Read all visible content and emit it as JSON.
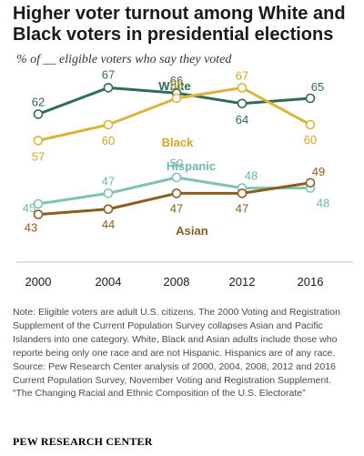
{
  "header": {
    "title": "Higher voter turnout among White and Black voters in presidential elections",
    "subtitle": "% of __ eligible voters who say they voted"
  },
  "chart_data": {
    "type": "line",
    "x": [
      "2000",
      "2004",
      "2008",
      "2012",
      "2016"
    ],
    "ylim": [
      40,
      70
    ],
    "grid": false,
    "series": [
      {
        "name": "White",
        "values": [
          62,
          67,
          66,
          64,
          65
        ],
        "color": "#2f6b58",
        "label_color": "#2f6b58"
      },
      {
        "name": "Black",
        "values": [
          57,
          60,
          65,
          67,
          60
        ],
        "color": "#dcb43a",
        "label_color": "#d4a523"
      },
      {
        "name": "Hispanic",
        "values": [
          45,
          47,
          50,
          48,
          48
        ],
        "color": "#7fc3b5",
        "label_color": "#6dbbab"
      },
      {
        "name": "Asian",
        "values": [
          43,
          44,
          47,
          47,
          49
        ],
        "color": "#8b5e1c",
        "label_color": "#8b5e1c"
      }
    ],
    "data_labels": [
      {
        "series": 0,
        "text": [
          "62",
          "67",
          "66",
          "64",
          "65"
        ]
      },
      {
        "series": 1,
        "text": [
          "57",
          "60",
          "65",
          "67",
          "60"
        ]
      },
      {
        "series": 2,
        "text": [
          "45",
          "47",
          "50",
          "48",
          "48"
        ]
      },
      {
        "series": 3,
        "text": [
          "43",
          "44",
          "47",
          "47",
          "49"
        ]
      }
    ]
  },
  "notes": {
    "note": "Note: Eligible voters are adult U.S. citizens. The 2000 Voting and Registration Supplement of the Current Population Survey collapses Asian and Pacific Islanders into one category. White, Black and Asian adults include those who reporte being only one race and are not Hispanic. Hispanics are of any race.",
    "source": "Source: Pew Research Center analysis of 2000, 2004, 2008, 2012 and 2016 Current Population Survey, November Voting and Registration Supplement.",
    "report": "“The Changing Racial and Ethnic Composition of the U.S. Electorate”"
  },
  "footer": {
    "org": "PEW RESEARCH CENTER"
  }
}
